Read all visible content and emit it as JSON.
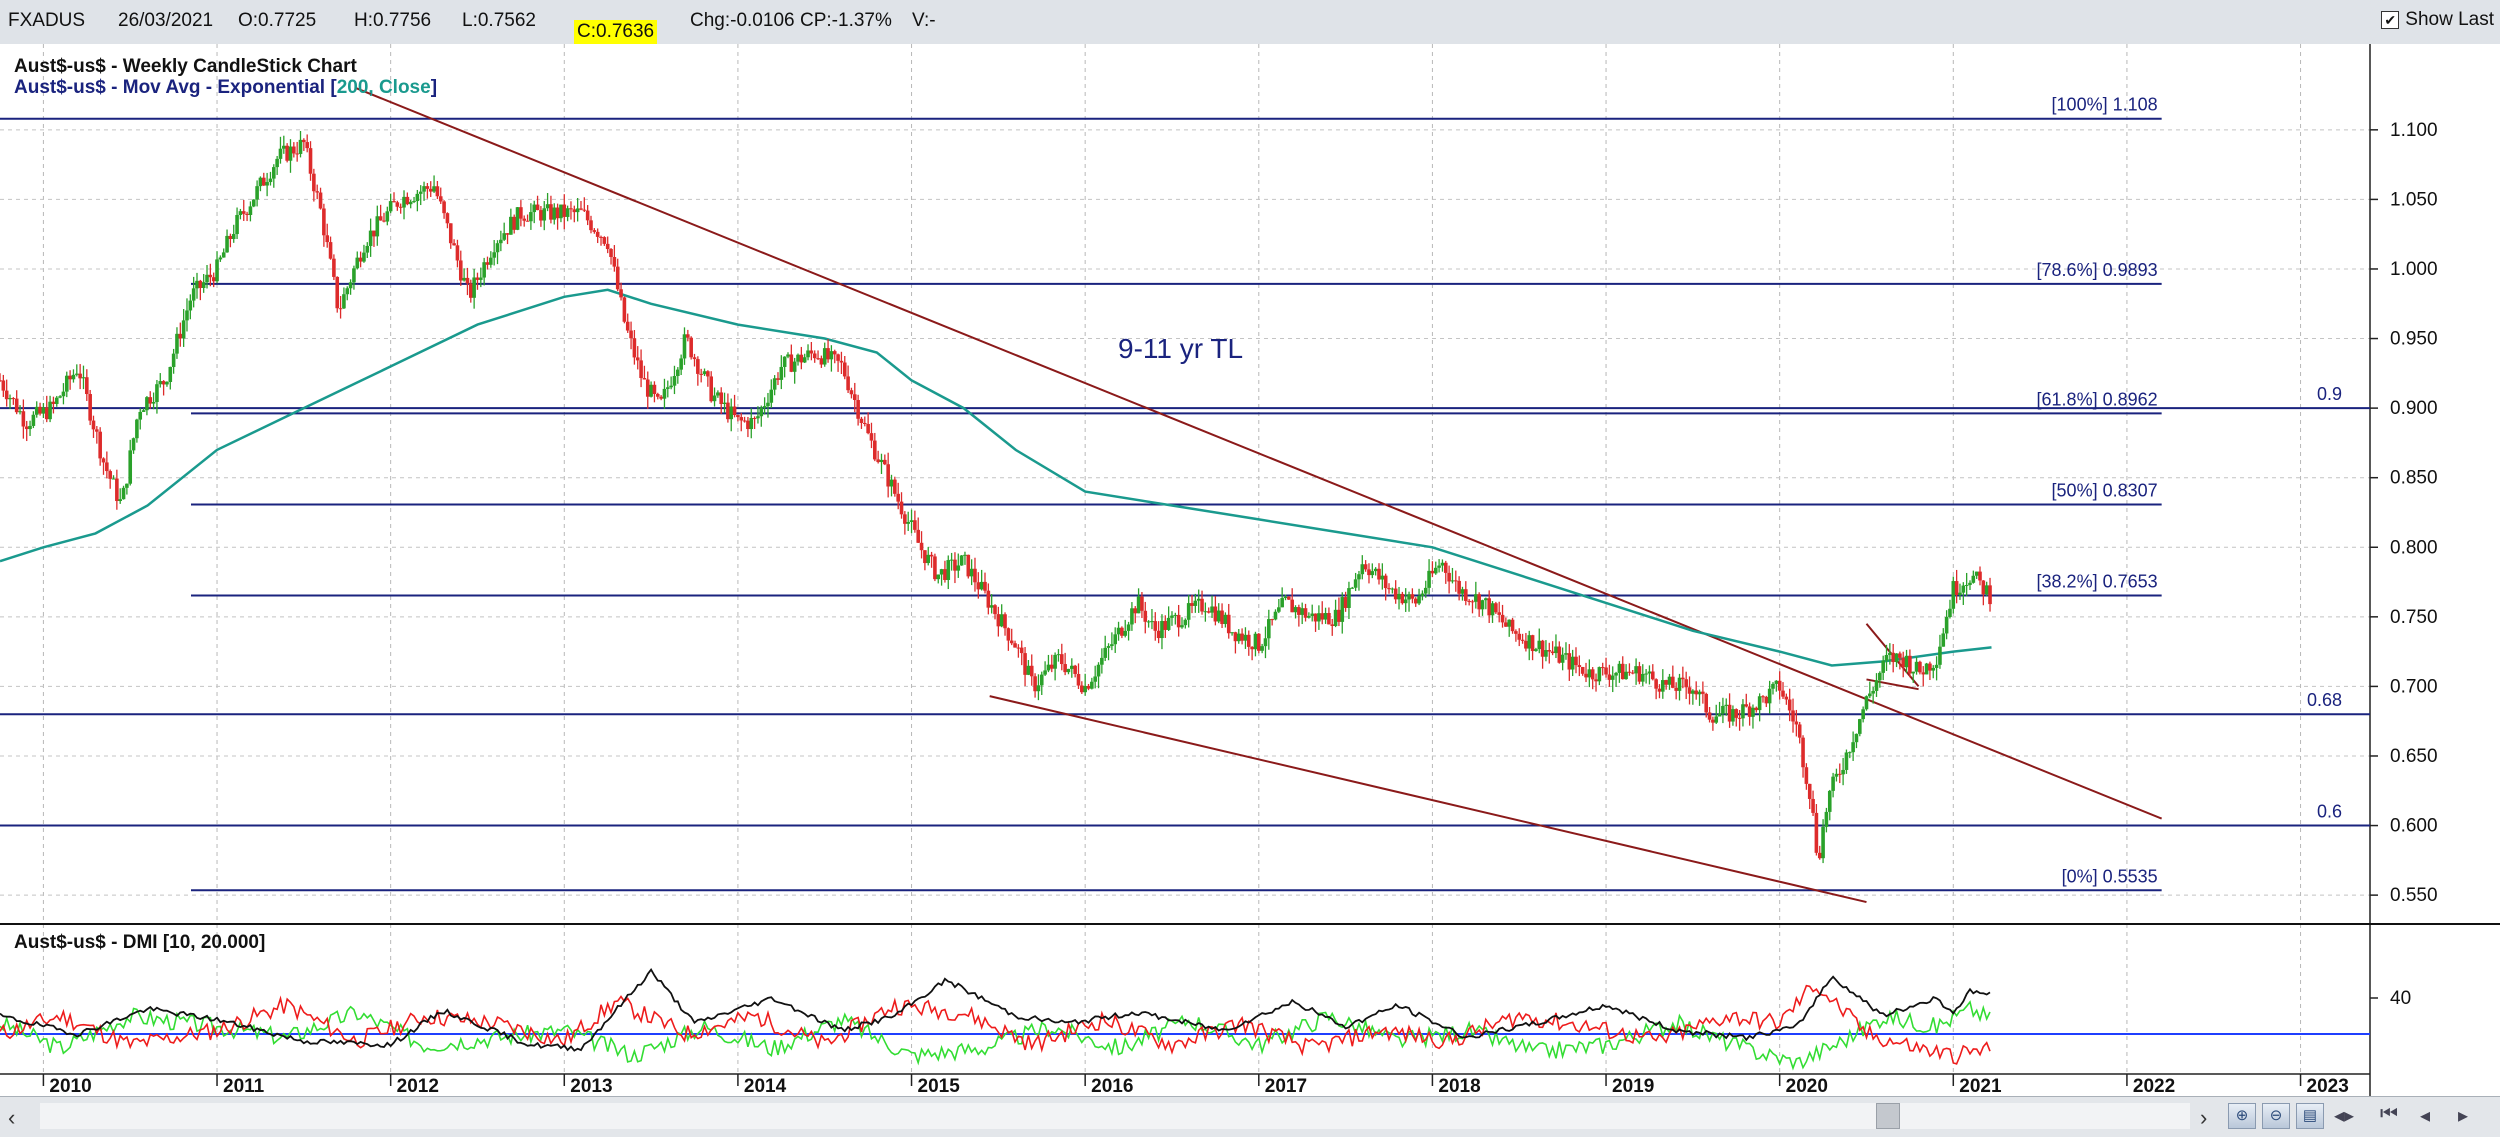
{
  "header": {
    "symbol": "FXADUS",
    "date": "26/03/2021",
    "open": "O:0.7725",
    "high": "H:0.7756",
    "low": "L:0.7562",
    "close": "C:0.7636",
    "change": "Chg:-0.0106",
    "change_pct": "CP:-1.37%",
    "volume": "V:-",
    "show_last_label": "Show Last",
    "show_last_checked": true
  },
  "colors": {
    "up_candle": "#2aa12a",
    "down_candle": "#dd2b2b",
    "ema": "#1a9a8e",
    "trendline": "#8b1a1a",
    "fib_line": "#1a237e",
    "dmi_plus": "#33dd33",
    "dmi_minus": "#ee1c1c",
    "adx": "#111111",
    "threshold": "#1f3fff"
  },
  "chart_data": [
    {
      "type": "candlestick",
      "title": "Aust$-us$ - Weekly CandleStick Chart",
      "subtitle_prefix": "Aust$-us$ - Mov Avg - Exponential [",
      "subtitle_highlight": "200, Close",
      "subtitle_suffix": "]",
      "x_ticks": [
        "2010",
        "2011",
        "2012",
        "2013",
        "2014",
        "2015",
        "2016",
        "2017",
        "2018",
        "2019",
        "2020",
        "2021",
        "2022",
        "2023"
      ],
      "y_ticks": [
        "0.550",
        "0.600",
        "0.650",
        "0.700",
        "0.750",
        "0.800",
        "0.850",
        "0.900",
        "0.950",
        "1.000",
        "1.050",
        "1.100"
      ],
      "ylim": [
        0.535,
        1.12
      ],
      "xlim": [
        2009.75,
        2023.4
      ],
      "price_path": [
        [
          2009.75,
          0.92
        ],
        [
          2009.9,
          0.89
        ],
        [
          2010.05,
          0.9
        ],
        [
          2010.2,
          0.93
        ],
        [
          2010.35,
          0.86
        ],
        [
          2010.45,
          0.83
        ],
        [
          2010.55,
          0.9
        ],
        [
          2010.7,
          0.92
        ],
        [
          2010.85,
          0.98
        ],
        [
          2011.0,
          1.0
        ],
        [
          2011.1,
          1.03
        ],
        [
          2011.25,
          1.06
        ],
        [
          2011.35,
          1.08
        ],
        [
          2011.5,
          1.09
        ],
        [
          2011.6,
          1.04
        ],
        [
          2011.7,
          0.97
        ],
        [
          2011.85,
          1.02
        ],
        [
          2012.05,
          1.05
        ],
        [
          2012.25,
          1.06
        ],
        [
          2012.35,
          1.02
        ],
        [
          2012.45,
          0.98
        ],
        [
          2012.6,
          1.02
        ],
        [
          2012.75,
          1.04
        ],
        [
          2012.9,
          1.04
        ],
        [
          2013.1,
          1.04
        ],
        [
          2013.25,
          1.02
        ],
        [
          2013.35,
          0.96
        ],
        [
          2013.45,
          0.92
        ],
        [
          2013.55,
          0.9
        ],
        [
          2013.7,
          0.95
        ],
        [
          2013.85,
          0.91
        ],
        [
          2014.0,
          0.89
        ],
        [
          2014.1,
          0.89
        ],
        [
          2014.25,
          0.93
        ],
        [
          2014.45,
          0.94
        ],
        [
          2014.6,
          0.93
        ],
        [
          2014.75,
          0.88
        ],
        [
          2014.9,
          0.84
        ],
        [
          2015.05,
          0.8
        ],
        [
          2015.15,
          0.78
        ],
        [
          2015.3,
          0.79
        ],
        [
          2015.45,
          0.76
        ],
        [
          2015.6,
          0.73
        ],
        [
          2015.7,
          0.7
        ],
        [
          2015.85,
          0.72
        ],
        [
          2016.0,
          0.7
        ],
        [
          2016.15,
          0.73
        ],
        [
          2016.3,
          0.76
        ],
        [
          2016.4,
          0.74
        ],
        [
          2016.55,
          0.75
        ],
        [
          2016.7,
          0.76
        ],
        [
          2016.85,
          0.74
        ],
        [
          2017.0,
          0.73
        ],
        [
          2017.15,
          0.76
        ],
        [
          2017.3,
          0.75
        ],
        [
          2017.45,
          0.75
        ],
        [
          2017.6,
          0.79
        ],
        [
          2017.75,
          0.77
        ],
        [
          2017.9,
          0.76
        ],
        [
          2018.05,
          0.79
        ],
        [
          2018.15,
          0.77
        ],
        [
          2018.3,
          0.76
        ],
        [
          2018.45,
          0.74
        ],
        [
          2018.6,
          0.73
        ],
        [
          2018.75,
          0.72
        ],
        [
          2018.9,
          0.71
        ],
        [
          2019.05,
          0.71
        ],
        [
          2019.2,
          0.71
        ],
        [
          2019.35,
          0.7
        ],
        [
          2019.5,
          0.7
        ],
        [
          2019.6,
          0.68
        ],
        [
          2019.75,
          0.68
        ],
        [
          2019.9,
          0.69
        ],
        [
          2020.0,
          0.7
        ],
        [
          2020.1,
          0.67
        ],
        [
          2020.18,
          0.62
        ],
        [
          2020.22,
          0.575
        ],
        [
          2020.28,
          0.62
        ],
        [
          2020.38,
          0.65
        ],
        [
          2020.5,
          0.69
        ],
        [
          2020.62,
          0.72
        ],
        [
          2020.72,
          0.72
        ],
        [
          2020.8,
          0.71
        ],
        [
          2020.9,
          0.72
        ],
        [
          2021.0,
          0.77
        ],
        [
          2021.1,
          0.78
        ],
        [
          2021.22,
          0.765
        ]
      ],
      "ema_path": [
        [
          2009.75,
          0.79
        ],
        [
          2010.0,
          0.8
        ],
        [
          2010.3,
          0.81
        ],
        [
          2010.6,
          0.83
        ],
        [
          2011.0,
          0.87
        ],
        [
          2011.5,
          0.9
        ],
        [
          2012.0,
          0.93
        ],
        [
          2012.5,
          0.96
        ],
        [
          2013.0,
          0.98
        ],
        [
          2013.25,
          0.985
        ],
        [
          2013.5,
          0.975
        ],
        [
          2014.0,
          0.96
        ],
        [
          2014.5,
          0.95
        ],
        [
          2014.8,
          0.94
        ],
        [
          2015.0,
          0.92
        ],
        [
          2015.3,
          0.9
        ],
        [
          2015.6,
          0.87
        ],
        [
          2016.0,
          0.84
        ],
        [
          2016.5,
          0.83
        ],
        [
          2017.0,
          0.82
        ],
        [
          2017.5,
          0.81
        ],
        [
          2018.0,
          0.8
        ],
        [
          2018.5,
          0.78
        ],
        [
          2019.0,
          0.76
        ],
        [
          2019.5,
          0.74
        ],
        [
          2020.0,
          0.725
        ],
        [
          2020.3,
          0.715
        ],
        [
          2020.6,
          0.718
        ],
        [
          2021.0,
          0.725
        ],
        [
          2021.22,
          0.728
        ]
      ],
      "fib_levels": [
        {
          "label": "[100%] 1.108",
          "value": 1.108,
          "x_start": 2009.75
        },
        {
          "label": "[78.6%] 0.9893",
          "value": 0.9893,
          "x_start": 2010.85
        },
        {
          "label": "[61.8%] 0.8962",
          "value": 0.8962,
          "x_start": 2010.85
        },
        {
          "label": "[50%] 0.8307",
          "value": 0.8307,
          "x_start": 2010.85
        },
        {
          "label": "[38.2%] 0.7653",
          "value": 0.7653,
          "x_start": 2010.85
        },
        {
          "label": "[0%] 0.5535",
          "value": 0.5535,
          "x_start": 2010.85
        }
      ],
      "fib_x_end": 2022.2,
      "horizontal_levels": [
        {
          "label": "0.9",
          "value": 0.9
        },
        {
          "label": "0.68",
          "value": 0.68
        },
        {
          "label": "0.6",
          "value": 0.6
        }
      ],
      "trendlines": [
        {
          "from": [
            2011.8,
            1.13
          ],
          "to": [
            2022.2,
            0.605
          ]
        },
        {
          "from": [
            2015.45,
            0.693
          ],
          "to": [
            2020.5,
            0.545
          ]
        },
        {
          "from": [
            2020.5,
            0.745
          ],
          "to": [
            2020.8,
            0.7
          ]
        },
        {
          "from": [
            2020.5,
            0.705
          ],
          "to": [
            2020.8,
            0.698
          ]
        }
      ],
      "annotation": "9-11 yr TL"
    },
    {
      "type": "line",
      "title": "Aust$-us$ - DMI [10, 20.000]",
      "y_ticks": [
        "40"
      ],
      "threshold": 20,
      "ylim": [
        0,
        60
      ],
      "adx_path": [
        [
          2009.75,
          30
        ],
        [
          2010.2,
          20
        ],
        [
          2010.6,
          34
        ],
        [
          2011.0,
          28
        ],
        [
          2011.5,
          16
        ],
        [
          2012.0,
          14
        ],
        [
          2012.3,
          33
        ],
        [
          2012.8,
          14
        ],
        [
          2013.1,
          12
        ],
        [
          2013.5,
          55
        ],
        [
          2013.75,
          26
        ],
        [
          2014.2,
          40
        ],
        [
          2014.6,
          22
        ],
        [
          2014.9,
          30
        ],
        [
          2015.2,
          50
        ],
        [
          2015.6,
          30
        ],
        [
          2015.9,
          26
        ],
        [
          2016.3,
          32
        ],
        [
          2016.8,
          22
        ],
        [
          2017.2,
          38
        ],
        [
          2017.5,
          24
        ],
        [
          2017.8,
          36
        ],
        [
          2018.2,
          18
        ],
        [
          2018.6,
          26
        ],
        [
          2019.0,
          36
        ],
        [
          2019.4,
          22
        ],
        [
          2019.8,
          18
        ],
        [
          2020.1,
          24
        ],
        [
          2020.3,
          52
        ],
        [
          2020.6,
          30
        ],
        [
          2020.9,
          40
        ],
        [
          2021.0,
          32
        ],
        [
          2021.1,
          44
        ],
        [
          2021.22,
          42
        ]
      ],
      "plus_di_path": [
        [
          2009.75,
          26
        ],
        [
          2010.1,
          12
        ],
        [
          2010.5,
          30
        ],
        [
          2011.0,
          24
        ],
        [
          2011.4,
          18
        ],
        [
          2011.8,
          32
        ],
        [
          2012.2,
          14
        ],
        [
          2012.6,
          18
        ],
        [
          2013.0,
          22
        ],
        [
          2013.4,
          8
        ],
        [
          2013.8,
          24
        ],
        [
          2014.2,
          12
        ],
        [
          2014.6,
          28
        ],
        [
          2015.0,
          8
        ],
        [
          2015.4,
          12
        ],
        [
          2015.8,
          24
        ],
        [
          2016.2,
          12
        ],
        [
          2016.6,
          28
        ],
        [
          2017.0,
          14
        ],
        [
          2017.4,
          30
        ],
        [
          2017.8,
          16
        ],
        [
          2018.2,
          22
        ],
        [
          2018.6,
          10
        ],
        [
          2019.0,
          14
        ],
        [
          2019.4,
          26
        ],
        [
          2019.8,
          12
        ],
        [
          2020.1,
          4
        ],
        [
          2020.4,
          18
        ],
        [
          2020.6,
          30
        ],
        [
          2020.9,
          24
        ],
        [
          2021.1,
          34
        ],
        [
          2021.22,
          28
        ]
      ],
      "minus_di_path": [
        [
          2009.75,
          20
        ],
        [
          2010.1,
          30
        ],
        [
          2010.5,
          14
        ],
        [
          2011.0,
          22
        ],
        [
          2011.4,
          36
        ],
        [
          2011.8,
          16
        ],
        [
          2012.2,
          30
        ],
        [
          2012.6,
          26
        ],
        [
          2013.0,
          16
        ],
        [
          2013.3,
          38
        ],
        [
          2013.7,
          20
        ],
        [
          2014.1,
          30
        ],
        [
          2014.5,
          14
        ],
        [
          2014.9,
          36
        ],
        [
          2015.3,
          32
        ],
        [
          2015.7,
          14
        ],
        [
          2016.1,
          28
        ],
        [
          2016.5,
          14
        ],
        [
          2016.9,
          26
        ],
        [
          2017.3,
          12
        ],
        [
          2017.7,
          22
        ],
        [
          2018.1,
          16
        ],
        [
          2018.5,
          30
        ],
        [
          2018.9,
          24
        ],
        [
          2019.3,
          16
        ],
        [
          2019.7,
          30
        ],
        [
          2020.0,
          26
        ],
        [
          2020.2,
          48
        ],
        [
          2020.5,
          20
        ],
        [
          2020.8,
          12
        ],
        [
          2021.0,
          8
        ],
        [
          2021.22,
          12
        ]
      ]
    }
  ]
}
